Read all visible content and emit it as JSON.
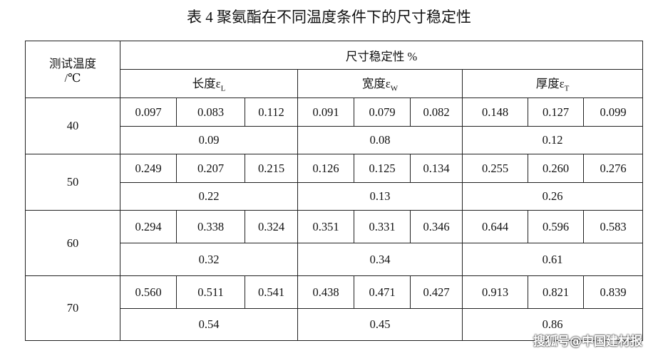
{
  "title": "表 4 聚氨酯在不同温度条件下的尺寸稳定性",
  "table": {
    "header": {
      "temp_line1": "测试温度",
      "temp_line2": "/℃",
      "group": "尺寸稳定性 %",
      "subgroups": [
        {
          "name": "长度",
          "symbol": "ε",
          "sub": "L"
        },
        {
          "name": "宽度",
          "symbol": "ε",
          "sub": "W"
        },
        {
          "name": "厚度",
          "symbol": "ε",
          "sub": "T"
        }
      ]
    },
    "rows": [
      {
        "temp": "40",
        "values": [
          "0.097",
          "0.083",
          "0.112",
          "0.091",
          "0.079",
          "0.082",
          "0.148",
          "0.127",
          "0.099"
        ],
        "means": [
          "0.09",
          "0.08",
          "0.12"
        ]
      },
      {
        "temp": "50",
        "values": [
          "0.249",
          "0.207",
          "0.215",
          "0.126",
          "0.125",
          "0.134",
          "0.255",
          "0.260",
          "0.276"
        ],
        "means": [
          "0.22",
          "0.13",
          "0.26"
        ]
      },
      {
        "temp": "60",
        "values": [
          "0.294",
          "0.338",
          "0.324",
          "0.351",
          "0.331",
          "0.346",
          "0.644",
          "0.596",
          "0.583"
        ],
        "means": [
          "0.32",
          "0.34",
          "0.61"
        ]
      },
      {
        "temp": "70",
        "values": [
          "0.560",
          "0.511",
          "0.541",
          "0.438",
          "0.471",
          "0.427",
          "0.913",
          "0.821",
          "0.839"
        ],
        "means": [
          "0.54",
          "0.45",
          "0.86"
        ]
      }
    ]
  },
  "watermark": "搜狐号@中国建材报"
}
